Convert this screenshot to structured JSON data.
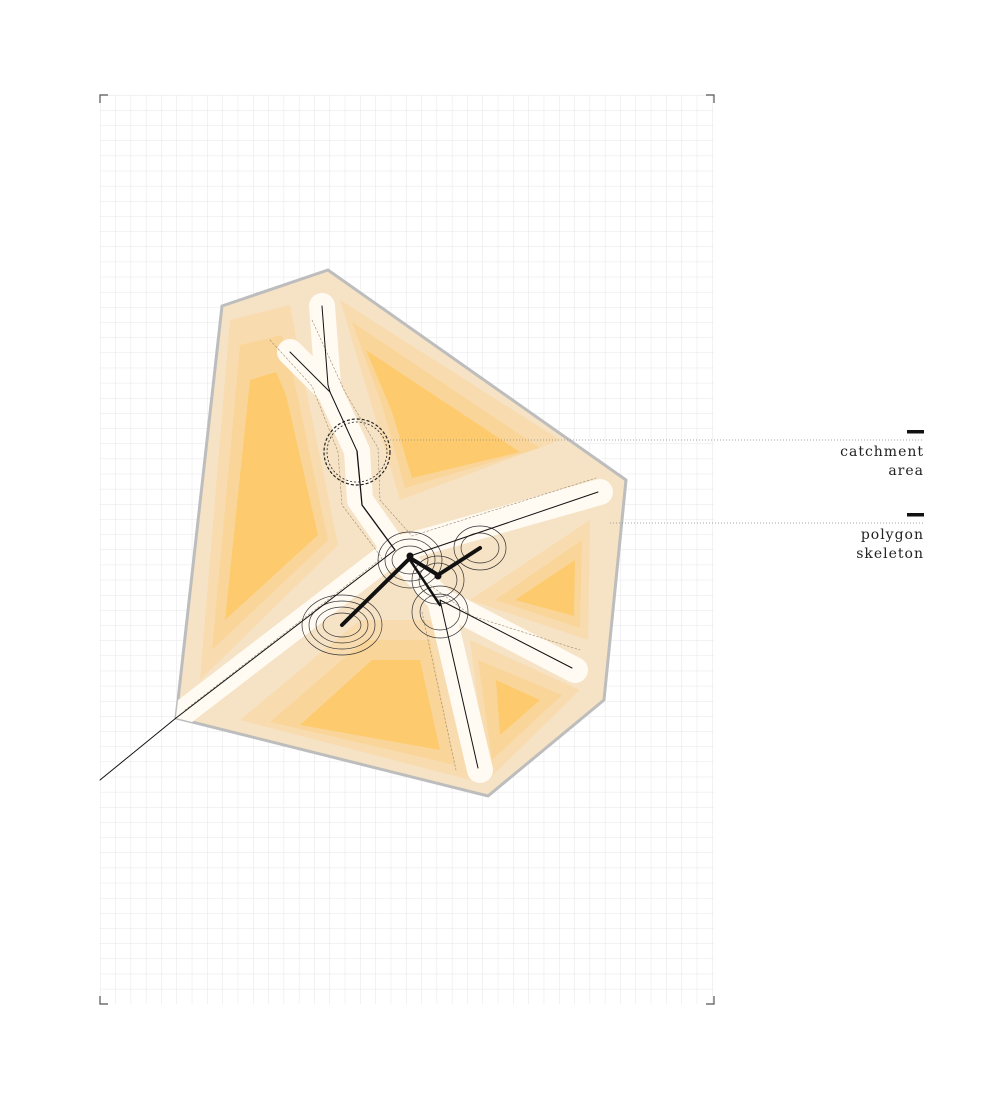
{
  "legend": {
    "catchment": {
      "line1": "catchment",
      "line2": "area"
    },
    "skeleton": {
      "line1": "polygon",
      "line2": "skeleton"
    }
  },
  "colors": {
    "grid": "#e6e6ea",
    "frame_corner": "#555555",
    "polygon_outline": "#bdbdbd",
    "offset_bands": [
      "#f7e3c6",
      "#f8dcaf",
      "#fad59a",
      "#fcd083",
      "#fdcb6e"
    ],
    "ridge_glow": "#ffffff",
    "skeleton_line": "#111111",
    "leader_line": "#888888"
  },
  "icons": {
    "legend_marker": "short-black-bar",
    "catchment_marker": "dashed-circle"
  }
}
